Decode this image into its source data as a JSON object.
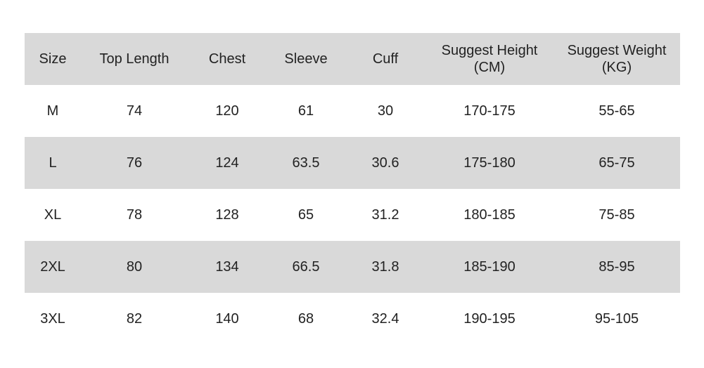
{
  "headers": [
    "Size",
    "Top Length",
    "Chest",
    "Sleeve",
    "Cuff",
    "Suggest Height\n(CM)",
    "Suggest Weight\n(KG)"
  ],
  "rows": [
    [
      "M",
      "74",
      "120",
      "61",
      "30",
      "170-175",
      "55-65"
    ],
    [
      "L",
      "76",
      "124",
      "63.5",
      "30.6",
      "175-180",
      "65-75"
    ],
    [
      "XL",
      "78",
      "128",
      "65",
      "31.2",
      "180-185",
      "75-85"
    ],
    [
      "2XL",
      "80",
      "134",
      "66.5",
      "31.8",
      "185-190",
      "85-95"
    ],
    [
      "3XL",
      "82",
      "140",
      "68",
      "32.4",
      "190-195",
      "95-105"
    ]
  ],
  "colors": {
    "band": "#d9d9d9",
    "text": "#222222"
  }
}
